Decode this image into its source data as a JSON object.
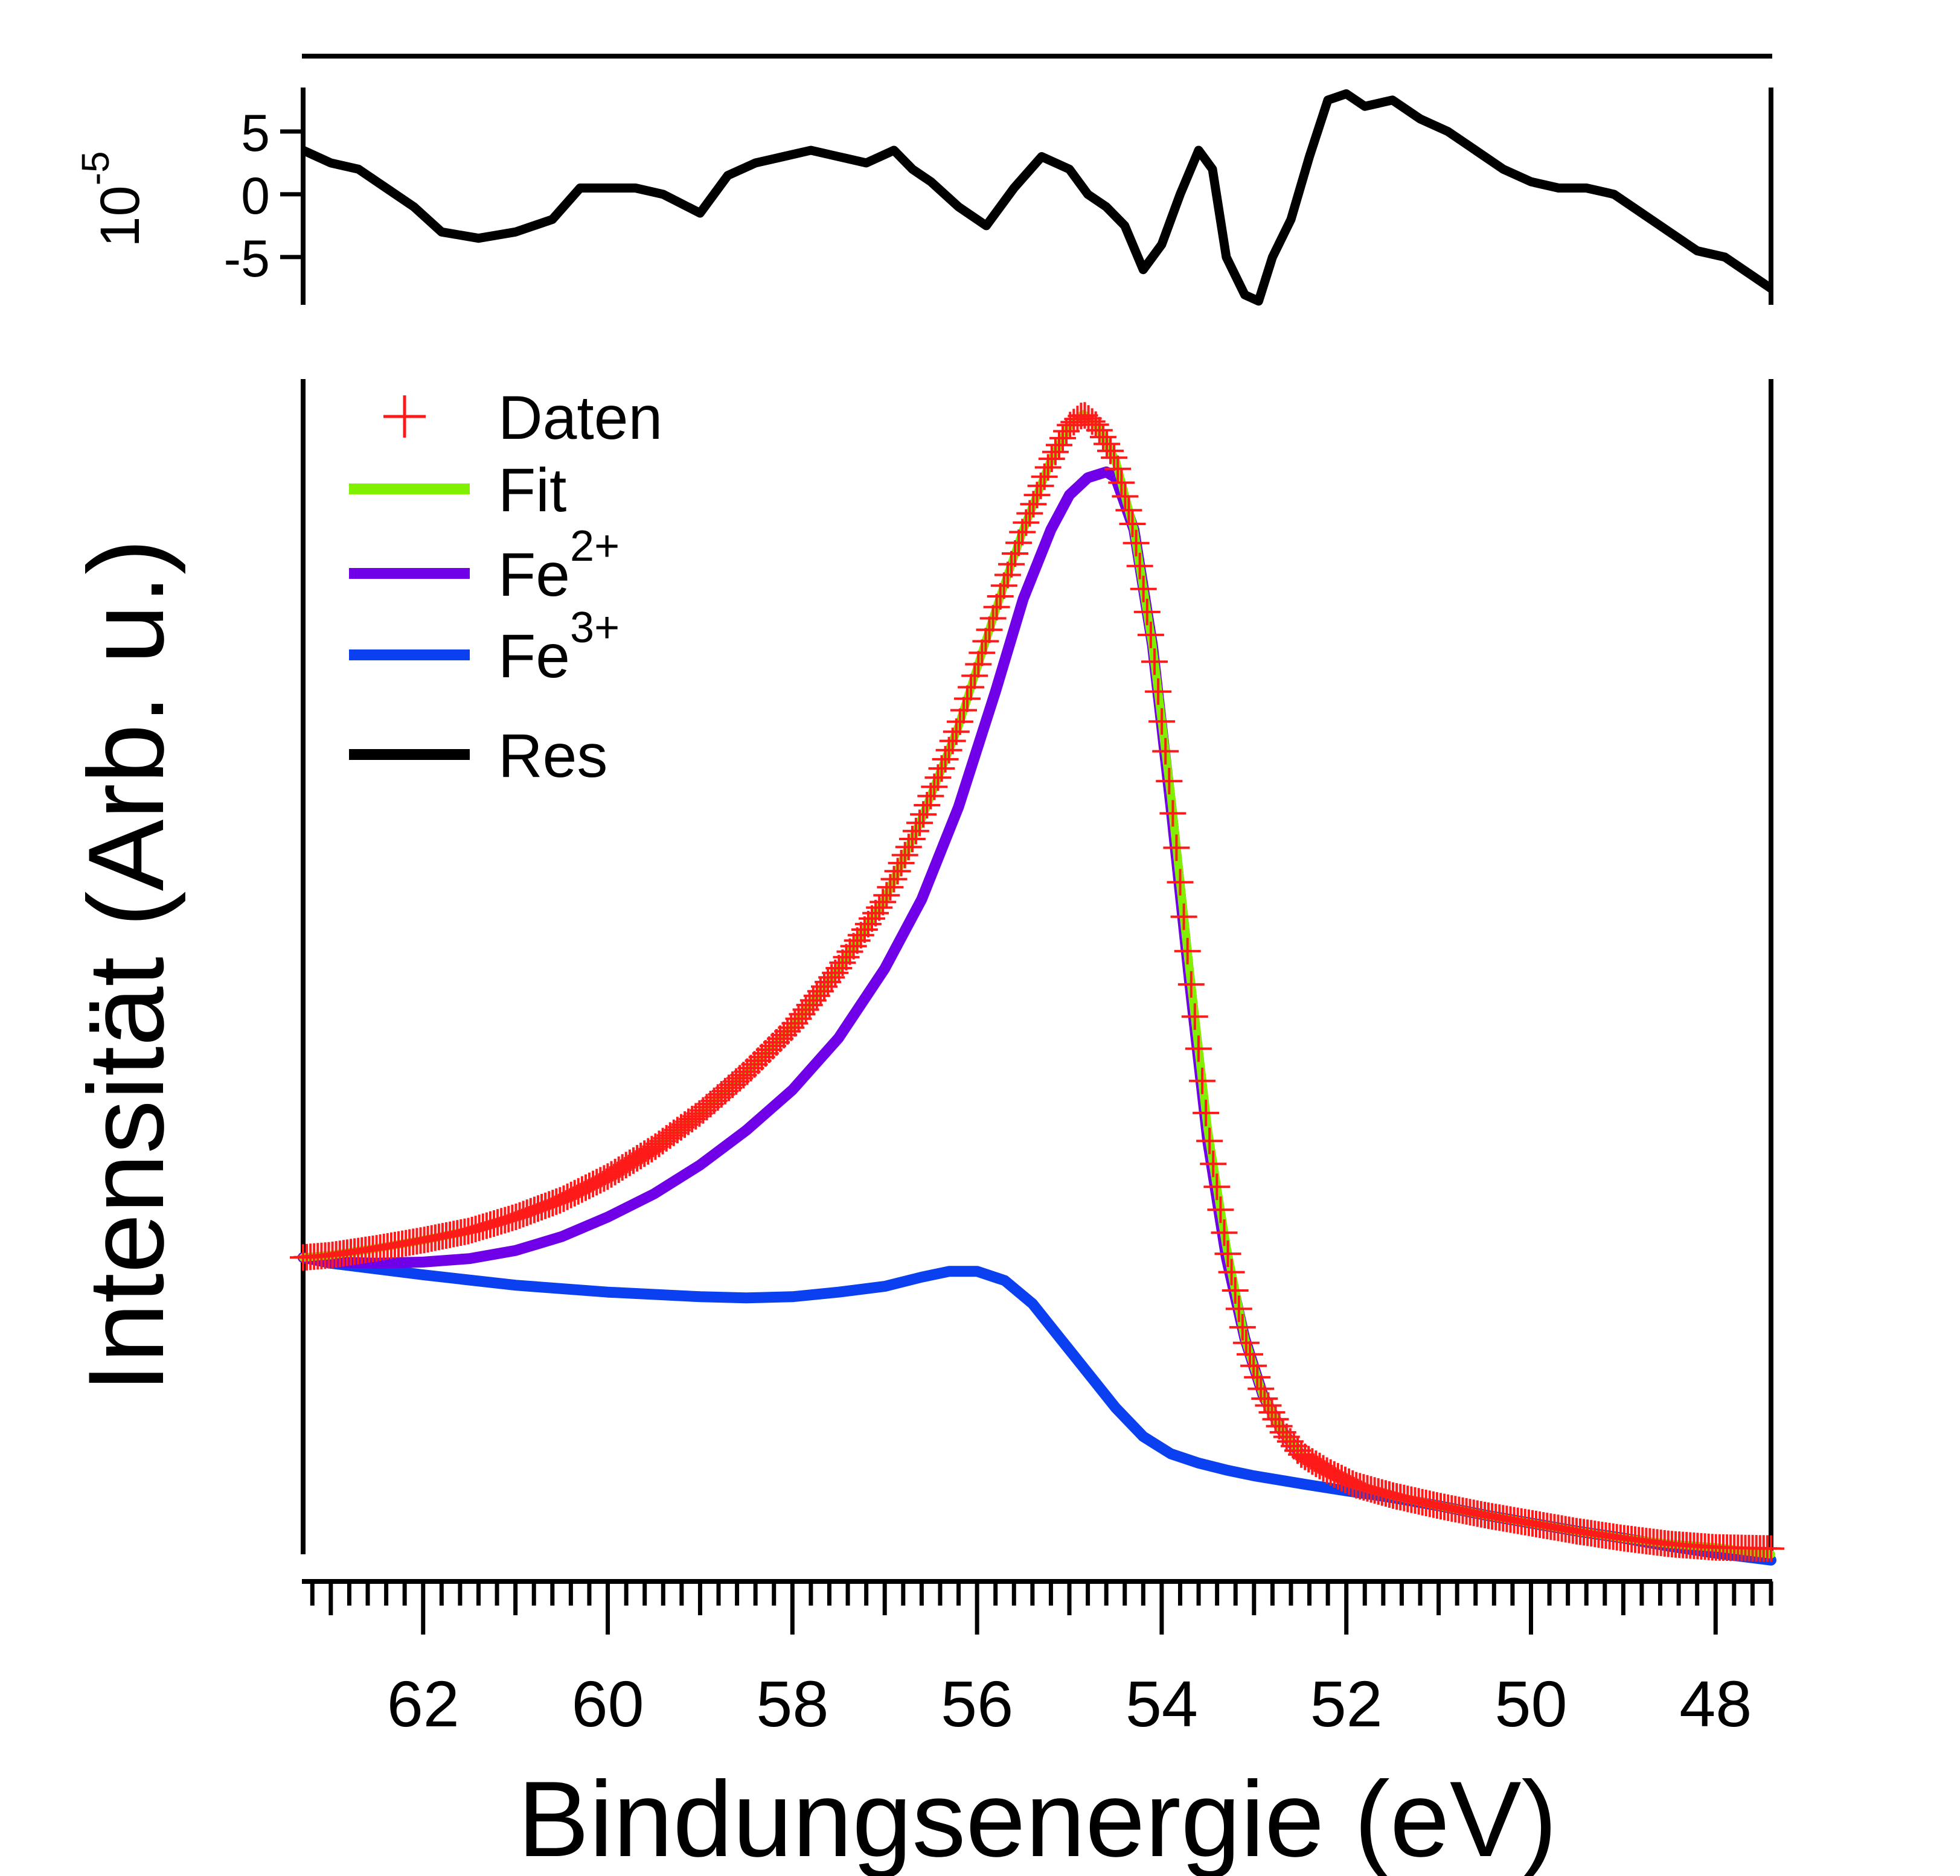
{
  "chart_data": [
    {
      "panel": "residual",
      "type": "line",
      "ylabel_base": "10",
      "ylabel_exponent": "-5",
      "ylim": [
        -8.8,
        8.5
      ],
      "xlim": [
        63.3,
        47.4
      ],
      "x_reversed": true,
      "yticks": [
        5,
        0,
        -5
      ],
      "ytick_labels": [
        "5",
        "0",
        "-5"
      ],
      "series": [
        {
          "name": "Res",
          "color": "#000000",
          "x": [
            63.3,
            63.0,
            62.7,
            62.4,
            62.1,
            61.8,
            61.4,
            61.0,
            60.6,
            60.3,
            60.0,
            59.7,
            59.4,
            59.0,
            58.7,
            58.4,
            58.1,
            57.8,
            57.5,
            57.2,
            56.9,
            56.7,
            56.5,
            56.2,
            55.9,
            55.6,
            55.3,
            55.0,
            54.8,
            54.6,
            54.4,
            54.2,
            54.0,
            53.8,
            53.6,
            53.45,
            53.3,
            53.1,
            52.95,
            52.8,
            52.6,
            52.4,
            52.2,
            52.0,
            51.8,
            51.5,
            51.2,
            50.9,
            50.6,
            50.3,
            50.0,
            49.7,
            49.4,
            49.1,
            48.8,
            48.5,
            48.2,
            47.9,
            47.6,
            47.4
          ],
          "y": [
            3.5,
            2.5,
            2.0,
            0.5,
            -1.0,
            -3.0,
            -3.5,
            -3.0,
            -2.0,
            0.5,
            0.5,
            0.5,
            0,
            -1.5,
            1.5,
            2.5,
            3.0,
            3.5,
            3.0,
            2.5,
            3.5,
            2.0,
            1.0,
            -1.0,
            -2.5,
            0.5,
            3.0,
            2.0,
            0,
            -1.0,
            -2.5,
            -6.0,
            -4.0,
            0,
            3.5,
            2.0,
            -5.0,
            -8.0,
            -8.5,
            -5.0,
            -2.0,
            3.0,
            7.5,
            8.0,
            7.0,
            7.5,
            6.0,
            5.0,
            3.5,
            2.0,
            1.0,
            0.5,
            0.5,
            0,
            -1.5,
            -3.0,
            -4.5,
            -5.0,
            -6.5,
            -7.5
          ]
        }
      ]
    },
    {
      "panel": "main",
      "type": "line",
      "xlabel": "Bindungsenergie (eV)",
      "ylabel": "Intensität (Arb. u.)",
      "xlim": [
        63.3,
        47.4
      ],
      "x_reversed": true,
      "ylim": [
        0,
        1.045
      ],
      "xticks": [
        62,
        60,
        58,
        56,
        54,
        52,
        50,
        48
      ],
      "xtick_labels": [
        "62",
        "60",
        "58",
        "56",
        "54",
        "52",
        "50",
        "48"
      ],
      "legend": {
        "placement": "top-left",
        "entries": [
          {
            "label": "Daten",
            "superscript": "",
            "color": "#ff1a1a",
            "marker": "plus"
          },
          {
            "label": "Fit",
            "superscript": "",
            "color": "#80f000",
            "marker": "line"
          },
          {
            "label": "Fe",
            "superscript": "2+",
            "color": "#7000e8",
            "marker": "line"
          },
          {
            "label": "Fe",
            "superscript": "3+",
            "color": "#0a40f0",
            "marker": "line"
          },
          {
            "label": "Res",
            "superscript": "",
            "color": "#000000",
            "marker": "line"
          }
        ]
      },
      "series": [
        {
          "name": "Daten",
          "color": "#ff1a1a",
          "marker": "plus",
          "x": [
            63.3,
            63.0,
            62.5,
            62.0,
            61.5,
            61.0,
            60.5,
            60.0,
            59.5,
            59.0,
            58.5,
            58.0,
            57.5,
            57.0,
            56.6,
            56.2,
            55.8,
            55.5,
            55.2,
            55.0,
            54.85,
            54.7,
            54.5,
            54.3,
            54.1,
            53.9,
            53.7,
            53.5,
            53.3,
            53.1,
            52.9,
            52.7,
            52.5,
            52.2,
            51.9,
            51.5,
            51.0,
            50.5,
            50.0,
            49.5,
            49.0,
            48.5,
            48.0,
            47.4
          ],
          "y": [
            0.27,
            0.272,
            0.278,
            0.285,
            0.293,
            0.305,
            0.32,
            0.34,
            0.365,
            0.395,
            0.43,
            0.47,
            0.52,
            0.58,
            0.65,
            0.73,
            0.83,
            0.9,
            0.96,
            0.99,
            1.0,
            0.99,
            0.96,
            0.9,
            0.8,
            0.67,
            0.52,
            0.38,
            0.28,
            0.2,
            0.15,
            0.12,
            0.1,
            0.085,
            0.073,
            0.064,
            0.055,
            0.047,
            0.04,
            0.033,
            0.027,
            0.022,
            0.019,
            0.018
          ]
        },
        {
          "name": "Fit",
          "color": "#80f000",
          "x": [
            63.3,
            63.0,
            62.5,
            62.0,
            61.5,
            61.0,
            60.5,
            60.0,
            59.5,
            59.0,
            58.5,
            58.0,
            57.5,
            57.0,
            56.6,
            56.2,
            55.8,
            55.5,
            55.2,
            55.0,
            54.85,
            54.7,
            54.5,
            54.3,
            54.1,
            53.9,
            53.7,
            53.5,
            53.3,
            53.1,
            52.9,
            52.7,
            52.5,
            52.2,
            51.9,
            51.5,
            51.0,
            50.5,
            50.0,
            49.5,
            49.0,
            48.5,
            48.0,
            47.4
          ],
          "y": [
            0.27,
            0.272,
            0.278,
            0.285,
            0.293,
            0.305,
            0.32,
            0.34,
            0.365,
            0.395,
            0.43,
            0.47,
            0.52,
            0.58,
            0.65,
            0.73,
            0.83,
            0.9,
            0.96,
            0.99,
            1.0,
            0.99,
            0.96,
            0.9,
            0.8,
            0.67,
            0.52,
            0.38,
            0.28,
            0.2,
            0.15,
            0.12,
            0.1,
            0.085,
            0.073,
            0.064,
            0.055,
            0.047,
            0.04,
            0.033,
            0.027,
            0.022,
            0.019,
            0.013
          ]
        },
        {
          "name": "Fe2+",
          "color": "#7000e8",
          "x": [
            63.3,
            63.0,
            62.5,
            62.0,
            61.5,
            61.0,
            60.5,
            60.0,
            59.5,
            59.0,
            58.5,
            58.0,
            57.5,
            57.0,
            56.6,
            56.2,
            55.8,
            55.5,
            55.2,
            55.0,
            54.8,
            54.6,
            54.5,
            54.3,
            54.1,
            53.9,
            53.7,
            53.5,
            53.3,
            53.1,
            52.9,
            52.7,
            52.5
          ],
          "y": [
            0.27,
            0.266,
            0.265,
            0.266,
            0.269,
            0.276,
            0.288,
            0.305,
            0.325,
            0.35,
            0.38,
            0.415,
            0.46,
            0.52,
            0.58,
            0.66,
            0.76,
            0.84,
            0.9,
            0.93,
            0.945,
            0.95,
            0.945,
            0.9,
            0.8,
            0.66,
            0.51,
            0.37,
            0.27,
            0.2,
            0.15,
            0.12,
            0.1
          ]
        },
        {
          "name": "Fe3+",
          "color": "#0a40f0",
          "x": [
            63.3,
            63.0,
            62.0,
            61.0,
            60.0,
            59.0,
            58.5,
            58.0,
            57.5,
            57.0,
            56.6,
            56.3,
            56.0,
            55.7,
            55.4,
            55.1,
            54.8,
            54.5,
            54.2,
            53.9,
            53.6,
            53.3,
            53.0,
            52.7,
            52.4,
            52.0,
            51.5,
            51.0,
            50.5,
            50.0,
            49.5,
            49.0,
            48.5,
            48.0,
            47.4
          ],
          "y": [
            0.27,
            0.265,
            0.255,
            0.246,
            0.24,
            0.236,
            0.235,
            0.236,
            0.24,
            0.245,
            0.253,
            0.258,
            0.258,
            0.25,
            0.23,
            0.2,
            0.17,
            0.14,
            0.115,
            0.1,
            0.092,
            0.086,
            0.081,
            0.077,
            0.073,
            0.068,
            0.062,
            0.055,
            0.047,
            0.04,
            0.033,
            0.027,
            0.02,
            0.014,
            0.008
          ]
        }
      ]
    }
  ]
}
